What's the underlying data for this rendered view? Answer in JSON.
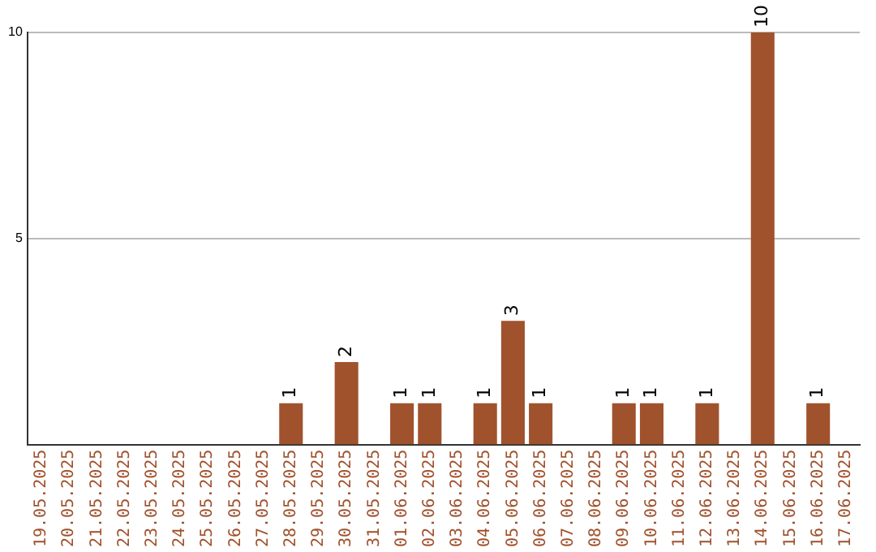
{
  "chart_data": {
    "type": "bar",
    "categories": [
      "19.05.2025",
      "20.05.2025",
      "21.05.2025",
      "22.05.2025",
      "23.05.2025",
      "24.05.2025",
      "25.05.2025",
      "26.05.2025",
      "27.05.2025",
      "28.05.2025",
      "29.05.2025",
      "30.05.2025",
      "31.05.2025",
      "01.06.2025",
      "02.06.2025",
      "03.06.2025",
      "04.06.2025",
      "05.06.2025",
      "06.06.2025",
      "07.06.2025",
      "08.06.2025",
      "09.06.2025",
      "10.06.2025",
      "11.06.2025",
      "12.06.2025",
      "13.06.2025",
      "14.06.2025",
      "15.06.2025",
      "16.06.2025",
      "17.06.2025"
    ],
    "values": [
      0,
      0,
      0,
      0,
      0,
      0,
      0,
      0,
      0,
      1,
      0,
      2,
      0,
      1,
      1,
      0,
      1,
      3,
      1,
      0,
      0,
      1,
      1,
      0,
      1,
      0,
      10,
      0,
      1,
      0
    ],
    "value_labels": [
      null,
      null,
      null,
      null,
      null,
      null,
      null,
      null,
      null,
      "1",
      null,
      "2",
      null,
      "1",
      "1",
      null,
      "1",
      "3",
      "1",
      null,
      null,
      "1",
      "1",
      null,
      "1",
      null,
      "10",
      null,
      "1",
      null
    ],
    "color": "#a0522d",
    "ylim": [
      0,
      10
    ],
    "yticks": [
      5,
      10
    ],
    "grid": "y",
    "legend": false
  }
}
